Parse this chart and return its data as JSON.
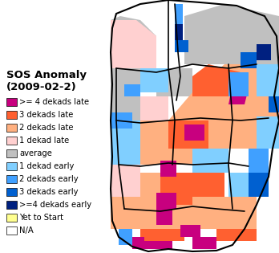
{
  "title_line1": "SOS Anomaly",
  "title_line2": "(2009-02-2)",
  "title_fontsize": 9.5,
  "legend_items": [
    {
      "label": ">= 4 dekads late",
      "color": "#C8007F"
    },
    {
      "label": "3 dekads late",
      "color": "#FF6030"
    },
    {
      "label": "2 dekads late",
      "color": "#FFB080"
    },
    {
      "label": "1 dekad late",
      "color": "#FFD0D0"
    },
    {
      "label": "average",
      "color": "#C0C0C0"
    },
    {
      "label": "1 dekad early",
      "color": "#80CFFF"
    },
    {
      "label": "2 dekads early",
      "color": "#40A0FF"
    },
    {
      "label": "3 dekads early",
      "color": "#0060D0"
    },
    {
      "label": ">=4 dekads early",
      "color": "#002080"
    },
    {
      "label": "Yet to Start",
      "color": "#FFFF90"
    },
    {
      "label": "N/A",
      "color": "#FFFFFF"
    }
  ],
  "background_color": "#FFFFFF",
  "label_fontsize": 7.2,
  "patch_border": "#000000",
  "map_colors": {
    "gray": "#C0C0C0",
    "light_pink": "#FFD0D0",
    "peach": "#FFB080",
    "orange": "#FF6030",
    "magenta": "#C8007F",
    "light_blue": "#80CFFF",
    "med_blue": "#40A0FF",
    "blue": "#0060D0",
    "dark_blue": "#002080",
    "yellow": "#FFFF90",
    "white": "#FFFFFF"
  }
}
